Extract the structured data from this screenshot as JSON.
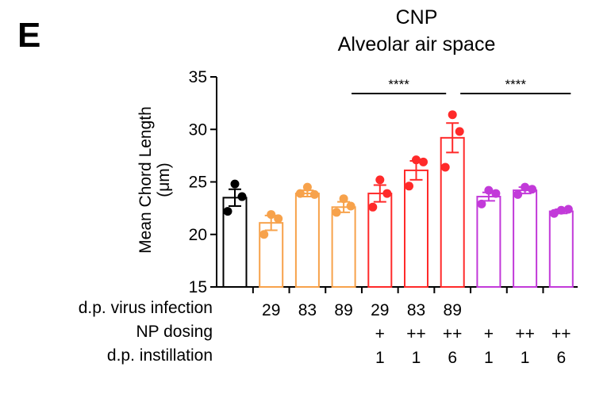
{
  "panel_label": "E",
  "chart_data": {
    "type": "bar",
    "title": "CNP",
    "subtitle": "Alveolar air space",
    "ylabel": "Mean Chord Length",
    "yunit": "(μm)",
    "ylim": [
      15,
      35
    ],
    "yticks": [
      "15",
      "20",
      "25",
      "30",
      "35"
    ],
    "bars": [
      {
        "color": "#000000",
        "mean": 23.5,
        "sem": 0.8,
        "points": [
          24.8,
          23.6,
          22.2
        ],
        "virus": "",
        "np": "",
        "inst": ""
      },
      {
        "color": "#F7A24B",
        "mean": 21.1,
        "sem": 0.7,
        "points": [
          21.9,
          21.5,
          20.0
        ],
        "virus": "29",
        "np": "",
        "inst": ""
      },
      {
        "color": "#F7A24B",
        "mean": 23.9,
        "sem": 0.3,
        "points": [
          24.5,
          23.8,
          23.9
        ],
        "virus": "83",
        "np": "",
        "inst": ""
      },
      {
        "color": "#F7A24B",
        "mean": 22.6,
        "sem": 0.5,
        "points": [
          23.4,
          22.7,
          22.1
        ],
        "virus": "89",
        "np": "",
        "inst": ""
      },
      {
        "color": "#FF2A2A",
        "mean": 23.9,
        "sem": 0.8,
        "points": [
          25.2,
          23.9,
          22.6
        ],
        "virus": "29",
        "np": "+",
        "inst": "1"
      },
      {
        "color": "#FF2A2A",
        "mean": 26.1,
        "sem": 0.9,
        "points": [
          27.1,
          26.9,
          24.6
        ],
        "virus": "83",
        "np": "++",
        "inst": "1"
      },
      {
        "color": "#FF2A2A",
        "mean": 29.2,
        "sem": 1.4,
        "points": [
          31.4,
          29.8,
          26.4
        ],
        "virus": "89",
        "np": "++",
        "inst": "6"
      },
      {
        "color": "#C23AD9",
        "mean": 23.6,
        "sem": 0.4,
        "points": [
          24.2,
          23.9,
          22.9
        ],
        "virus": "",
        "np": "+",
        "inst": "1"
      },
      {
        "color": "#C23AD9",
        "mean": 24.2,
        "sem": 0.3,
        "points": [
          24.5,
          24.3,
          23.8
        ],
        "virus": "",
        "np": "++",
        "inst": "1"
      },
      {
        "color": "#C23AD9",
        "mean": 22.2,
        "sem": 0.2,
        "points": [
          22.3,
          22.4,
          22.0
        ],
        "virus": "",
        "np": "++",
        "inst": "6"
      }
    ],
    "significance": [
      {
        "from": 3,
        "to": 6,
        "label": "****"
      },
      {
        "from": 6,
        "to": 9,
        "label": "****"
      }
    ],
    "row_labels": [
      "d.p. virus infection",
      "NP dosing",
      "d.p. instillation"
    ]
  }
}
